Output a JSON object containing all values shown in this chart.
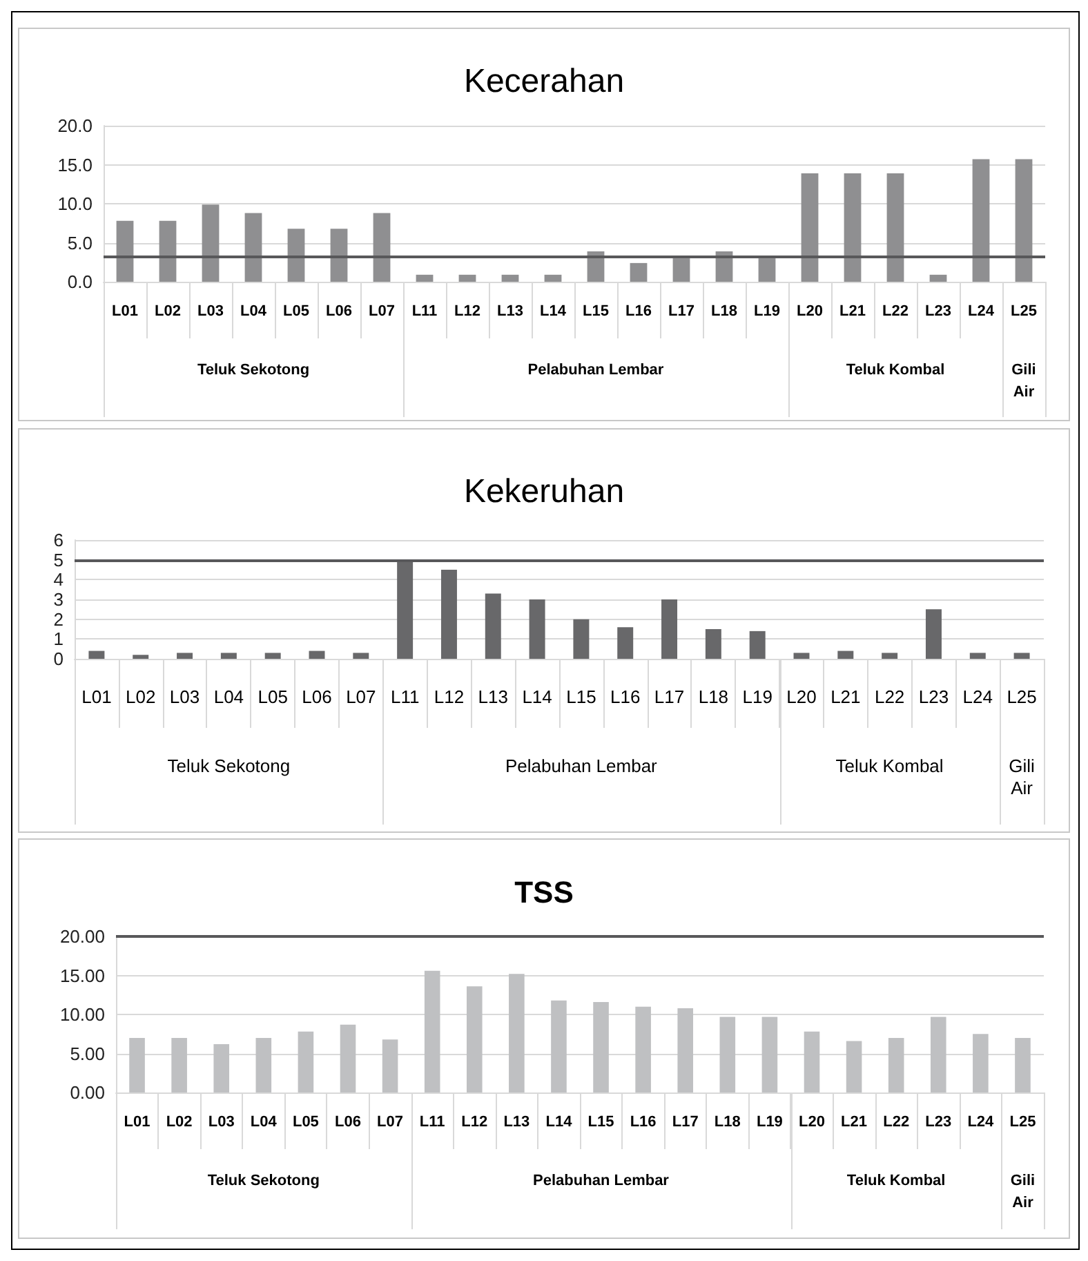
{
  "chart_data": [
    {
      "type": "bar",
      "title": "Kecerahan",
      "categories": [
        "L01",
        "L02",
        "L03",
        "L04",
        "L05",
        "L06",
        "L07",
        "L11",
        "L12",
        "L13",
        "L14",
        "L15",
        "L16",
        "L17",
        "L18",
        "L19",
        "L20",
        "L21",
        "L22",
        "L23",
        "L24",
        "L25"
      ],
      "values": [
        7.8,
        7.8,
        9.9,
        8.8,
        6.8,
        6.8,
        8.8,
        0.9,
        0.9,
        0.9,
        0.9,
        3.9,
        2.4,
        3.0,
        3.9,
        3.0,
        13.9,
        13.9,
        13.9,
        0.9,
        15.7,
        15.7
      ],
      "color": "#8f8f91",
      "ylim": [
        0,
        20
      ],
      "yticks": [
        {
          "value": 0,
          "label": "0.0"
        },
        {
          "value": 5,
          "label": "5.0"
        },
        {
          "value": 10,
          "label": "10.0"
        },
        {
          "value": 15,
          "label": "15.0"
        },
        {
          "value": 20,
          "label": "20.0"
        }
      ],
      "grid": "y",
      "ref_lines": [
        {
          "axis": "y",
          "value": 3.2,
          "color": "#58585a"
        }
      ],
      "annotations": [
        "Teluk Sekotong",
        "Pelabuhan Lembar",
        "Teluk Kombal",
        "Gili Air"
      ]
    },
    {
      "type": "bar",
      "title": "Kekeruhan",
      "categories": [
        "L01",
        "L02",
        "L03",
        "L04",
        "L05",
        "L06",
        "L07",
        "L11",
        "L12",
        "L13",
        "L14",
        "L15",
        "L16",
        "L17",
        "L18",
        "L19",
        "L20",
        "L21",
        "L22",
        "L23",
        "L24",
        "L25"
      ],
      "values": [
        0.4,
        0.2,
        0.3,
        0.3,
        0.3,
        0.4,
        0.3,
        5.0,
        4.5,
        3.3,
        3.0,
        2.0,
        1.6,
        3.0,
        1.5,
        1.4,
        0.3,
        0.4,
        0.3,
        2.5,
        0.3,
        0.3
      ],
      "color": "#68686a",
      "ylim": [
        0,
        6
      ],
      "yticks": [
        0,
        1,
        2,
        3,
        4,
        5,
        6
      ],
      "grid": "y",
      "ref_lines": [
        {
          "axis": "y",
          "value": 5,
          "color": "#58585a"
        }
      ],
      "annotations": [
        "Teluk Sekotong",
        "Pelabuhan Lembar",
        "Teluk Kombal",
        "Gili Air"
      ]
    },
    {
      "type": "bar",
      "title": "TSS",
      "categories": [
        "L01",
        "L02",
        "L03",
        "L04",
        "L05",
        "L06",
        "L07",
        "L11",
        "L12",
        "L13",
        "L14",
        "L15",
        "L16",
        "L17",
        "L18",
        "L19",
        "L20",
        "L21",
        "L22",
        "L23",
        "L24",
        "L25"
      ],
      "values": [
        7.0,
        7.0,
        6.2,
        7.0,
        7.8,
        8.7,
        6.8,
        15.6,
        13.6,
        15.2,
        11.8,
        11.6,
        11.0,
        10.8,
        9.7,
        9.7,
        7.8,
        6.6,
        7.0,
        9.7,
        7.5,
        7.0
      ],
      "color": "#bfc0c2",
      "ylim": [
        0,
        20
      ],
      "yticks": [
        {
          "value": 0,
          "label": "0.00"
        },
        {
          "value": 5,
          "label": "5.00"
        },
        {
          "value": 10,
          "label": "10.00"
        },
        {
          "value": 15,
          "label": "15.00"
        },
        {
          "value": 20,
          "label": "20.00"
        }
      ],
      "grid": "y",
      "ref_lines": [
        {
          "axis": "y",
          "value": 20,
          "color": "#58585a"
        }
      ],
      "annotations": [
        "Teluk Sekotong",
        "Pelabuhan Lembar",
        "Teluk Kombal",
        "Gili Air"
      ]
    }
  ]
}
